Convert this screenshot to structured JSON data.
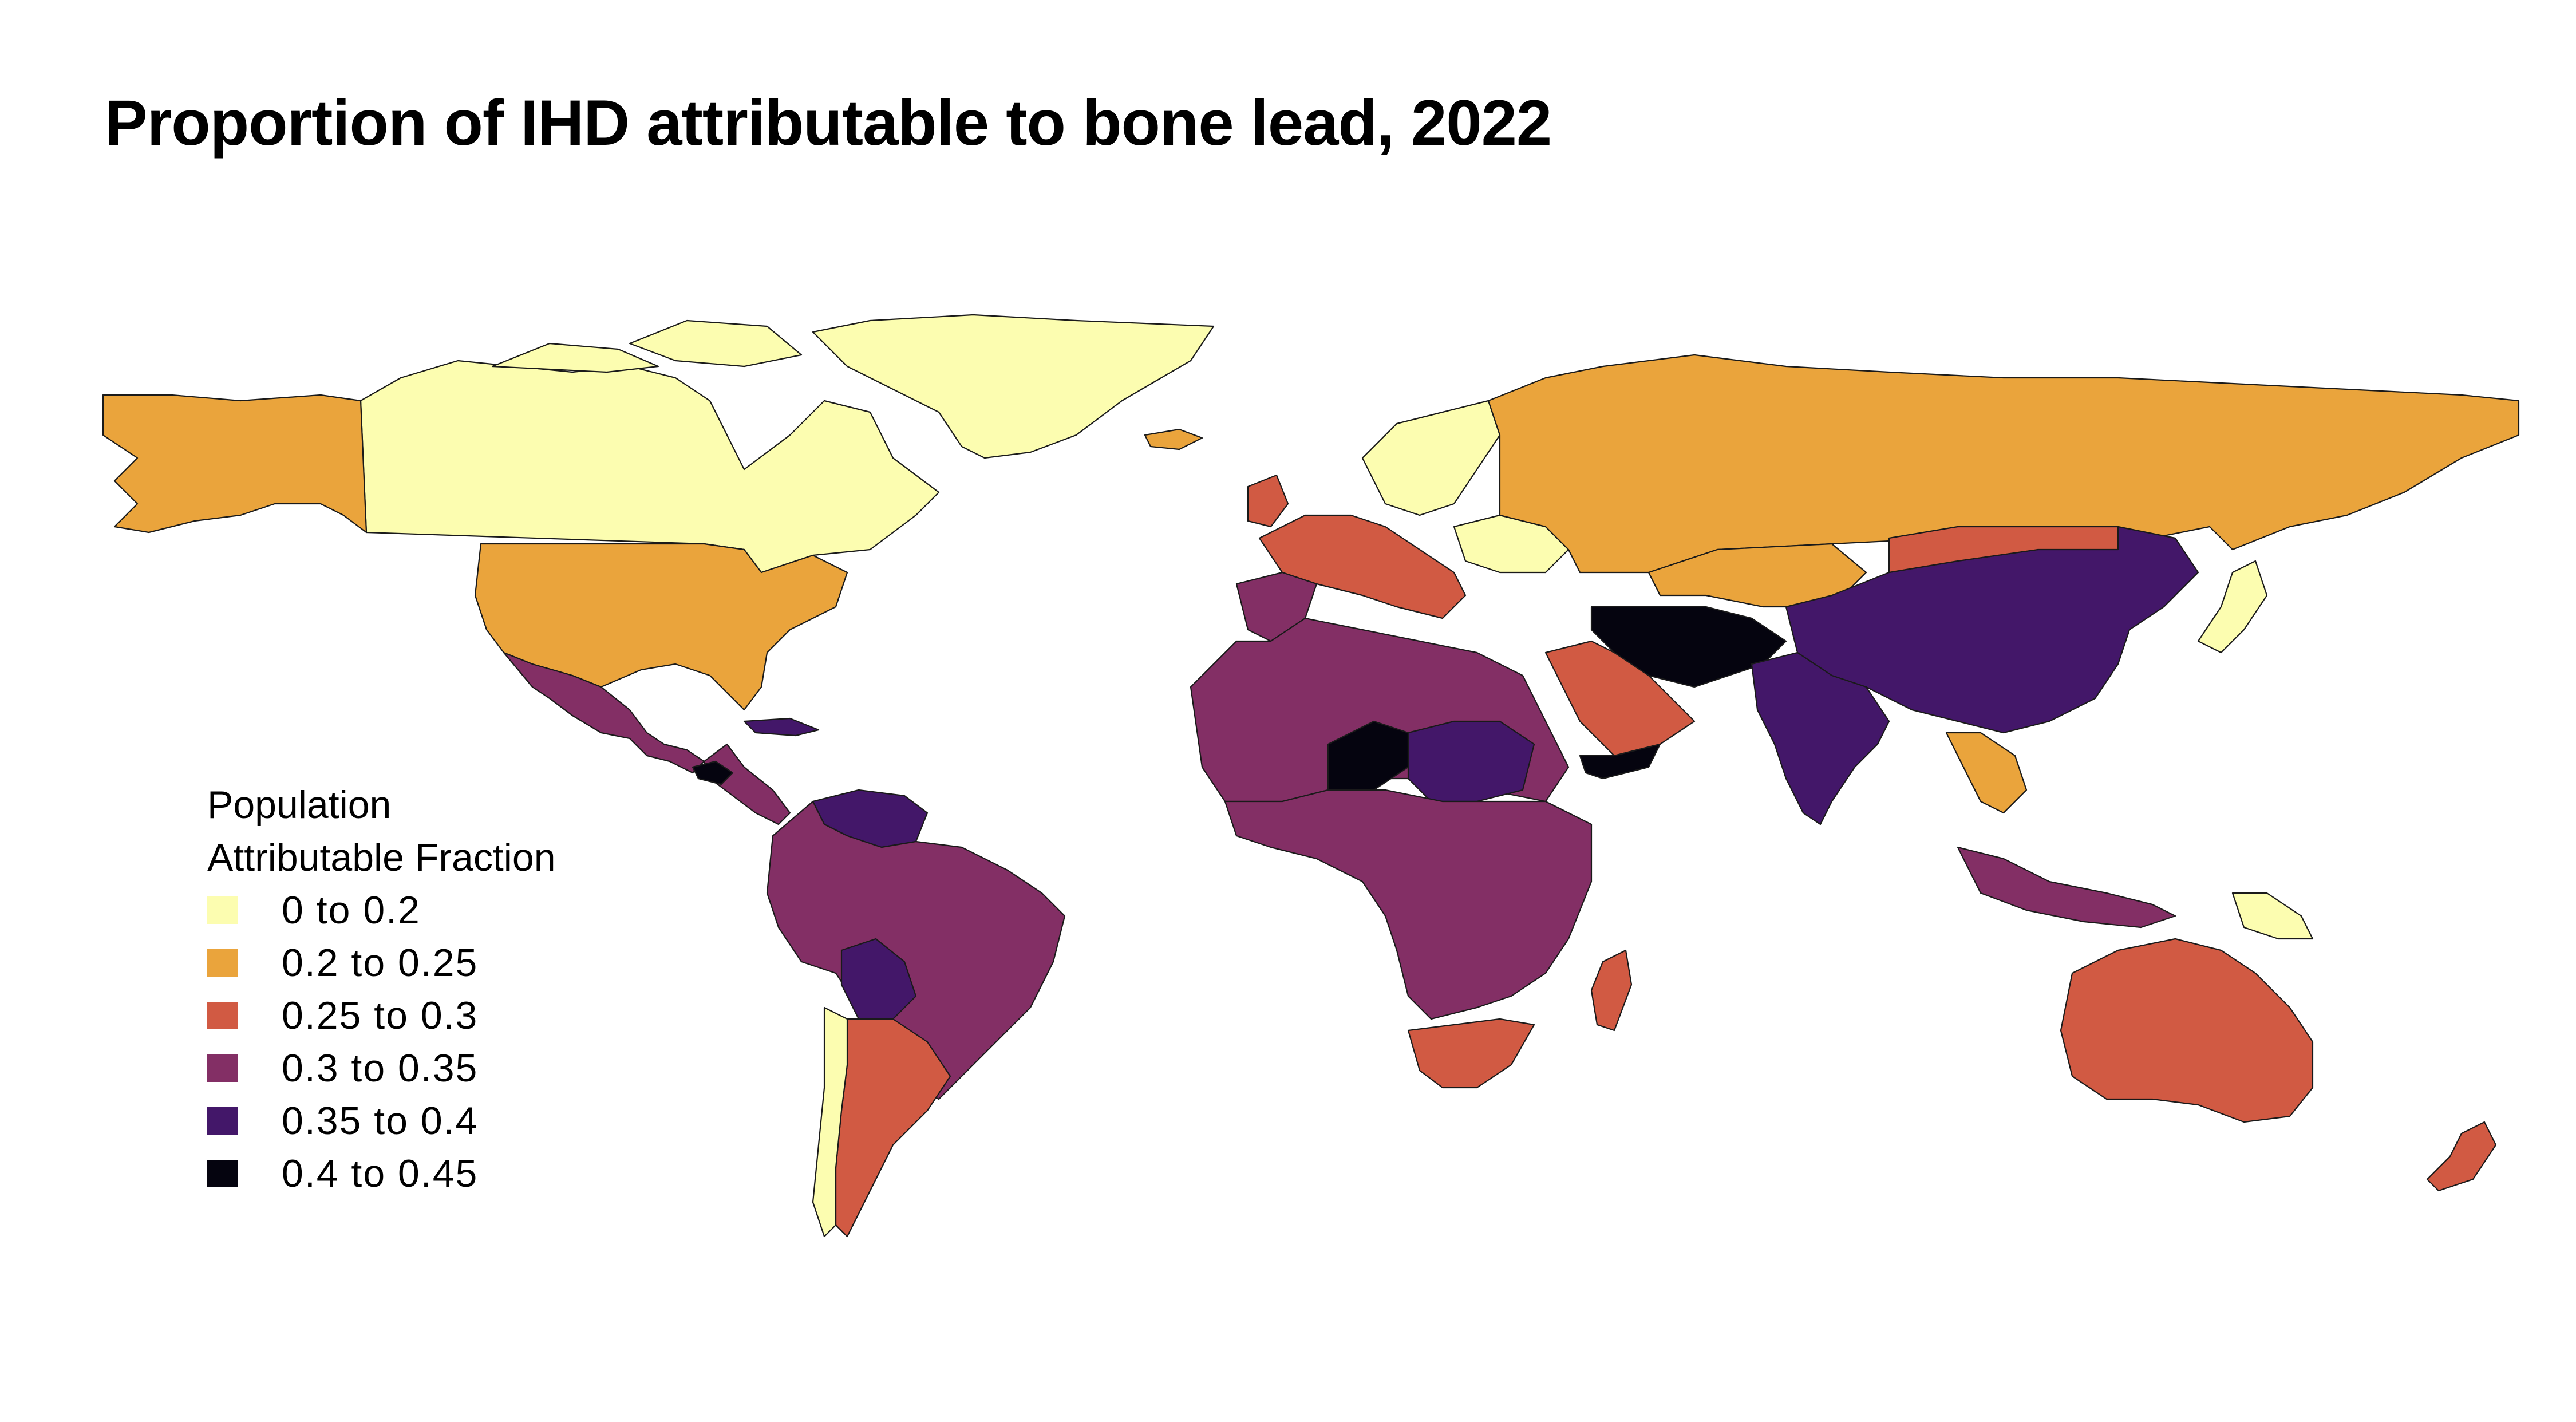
{
  "title": "Proportion of IHD attributable to bone lead, 2022",
  "legend": {
    "title_line1": "Population",
    "title_line2": "Attributable Fraction",
    "items": [
      {
        "label": "0  to  0.2",
        "color": "#fcfdb0"
      },
      {
        "label": "0.2  to  0.25",
        "color": "#eaa43c"
      },
      {
        "label": "0.25  to  0.3",
        "color": "#d15a43"
      },
      {
        "label": "0.3  to  0.35",
        "color": "#832f65"
      },
      {
        "label": "0.35  to  0.4",
        "color": "#431769"
      },
      {
        "label": "0.4  to  0.45",
        "color": "#05040f"
      }
    ]
  },
  "regions": [
    {
      "name": "Canada",
      "class": 0
    },
    {
      "name": "Greenland",
      "class": 0
    },
    {
      "name": "Alaska",
      "class": 1
    },
    {
      "name": "United States",
      "class": 1
    },
    {
      "name": "Mexico",
      "class": 3
    },
    {
      "name": "Central America",
      "class": 3
    },
    {
      "name": "Guatemala",
      "class": 5
    },
    {
      "name": "Venezuela",
      "class": 4
    },
    {
      "name": "Brazil",
      "class": 3
    },
    {
      "name": "Bolivia",
      "class": 4
    },
    {
      "name": "Argentina",
      "class": 2
    },
    {
      "name": "Chile",
      "class": 0
    },
    {
      "name": "Russia",
      "class": 1
    },
    {
      "name": "Scandinavia",
      "class": 0
    },
    {
      "name": "Western Europe",
      "class": 2
    },
    {
      "name": "Eastern Europe",
      "class": 0
    },
    {
      "name": "Morocco",
      "class": 3
    },
    {
      "name": "North Africa",
      "class": 3
    },
    {
      "name": "Niger",
      "class": 5
    },
    {
      "name": "Chad",
      "class": 4
    },
    {
      "name": "Central Africa",
      "class": 3
    },
    {
      "name": "Southern Africa",
      "class": 2
    },
    {
      "name": "Madagascar",
      "class": 2
    },
    {
      "name": "Saudi Arabia",
      "class": 2
    },
    {
      "name": "Yemen",
      "class": 5
    },
    {
      "name": "Iran Afghanistan Pakistan",
      "class": 5
    },
    {
      "name": "Kazakhstan",
      "class": 1
    },
    {
      "name": "China",
      "class": 4
    },
    {
      "name": "Mongolia",
      "class": 2
    },
    {
      "name": "India",
      "class": 4
    },
    {
      "name": "Southeast Asia",
      "class": 1
    },
    {
      "name": "Japan",
      "class": 0
    },
    {
      "name": "Indonesia",
      "class": 3
    },
    {
      "name": "Papua New Guinea",
      "class": 0
    },
    {
      "name": "Australia",
      "class": 2
    },
    {
      "name": "New Zealand",
      "class": 2
    },
    {
      "name": "Iceland",
      "class": 1
    }
  ]
}
